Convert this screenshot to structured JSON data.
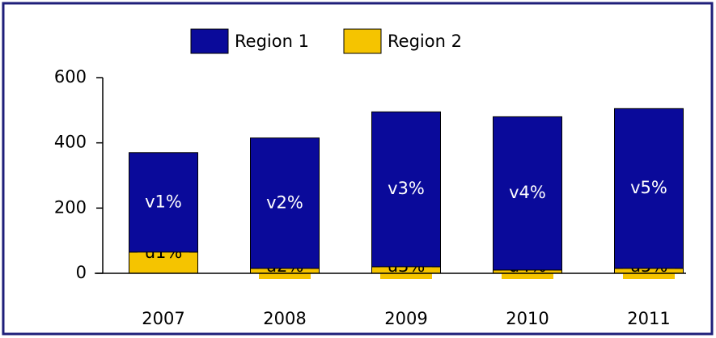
{
  "chart_data": {
    "type": "stacked_bar",
    "categories": [
      "2007",
      "2008",
      "2009",
      "2010",
      "2011"
    ],
    "series": [
      {
        "name": "Region 2",
        "color": "#f5c400",
        "values": [
          65,
          15,
          20,
          10,
          15
        ],
        "value_labels": [
          "u1%",
          "u2%",
          "u3%",
          "u4%",
          "u5%"
        ]
      },
      {
        "name": "Region 1",
        "color": "#0a0a9a",
        "values": [
          305,
          400,
          475,
          470,
          490
        ],
        "value_labels": [
          "v1%",
          "v2%",
          "v3%",
          "v4%",
          "v5%"
        ]
      }
    ],
    "legend_order": [
      "Region 1",
      "Region 2"
    ],
    "ylim": [
      0,
      600
    ],
    "yticks": [
      0,
      200,
      400,
      600
    ],
    "grid": false
  }
}
